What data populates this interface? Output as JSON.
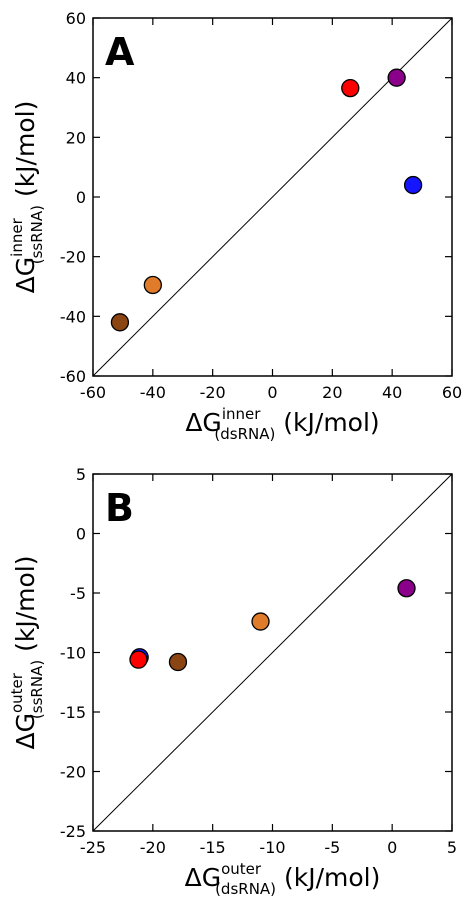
{
  "chart_data": [
    {
      "type": "scatter",
      "panel_label": "A",
      "xlabel": {
        "prefix": "ΔG",
        "sup": "inner",
        "sub": "(dsRNA)",
        "suffix": " (kJ/mol)"
      },
      "ylabel": {
        "prefix": "ΔG",
        "sup": "inner",
        "sub": "(ssRNA)",
        "suffix": " (kJ/mol)"
      },
      "xlim": [
        -60,
        60
      ],
      "ylim": [
        -60,
        60
      ],
      "xticks": [
        -60,
        -40,
        -20,
        0,
        20,
        40,
        60
      ],
      "yticks": [
        -60,
        -40,
        -20,
        0,
        20,
        40,
        60
      ],
      "xtick_labels": [
        "-60",
        "-40",
        "-20",
        "0",
        "20",
        "40",
        "60"
      ],
      "ytick_labels": [
        "-60",
        "-40",
        "-20",
        "0",
        "20",
        "40",
        "60"
      ],
      "reference_line": "y = x",
      "points": [
        {
          "x": -51,
          "y": -42,
          "color": "#8B4513"
        },
        {
          "x": -40,
          "y": -29.5,
          "color": "#E07B2A"
        },
        {
          "x": 26,
          "y": 36.5,
          "color": "#FF0000"
        },
        {
          "x": 41.5,
          "y": 40,
          "color": "#8B008B"
        },
        {
          "x": 47,
          "y": 4,
          "color": "#1515FF"
        }
      ]
    },
    {
      "type": "scatter",
      "panel_label": "B",
      "xlabel": {
        "prefix": "ΔG",
        "sup": "outer",
        "sub": "(dsRNA)",
        "suffix": " (kJ/mol)"
      },
      "ylabel": {
        "prefix": "ΔG",
        "sup": "outer",
        "sub": "(ssRNA)",
        "suffix": " (kJ/mol)"
      },
      "xlim": [
        -25,
        5
      ],
      "ylim": [
        -25,
        5
      ],
      "xticks": [
        -25,
        -20,
        -15,
        -10,
        -5,
        0,
        5
      ],
      "yticks": [
        -25,
        -20,
        -15,
        -10,
        -5,
        0,
        5
      ],
      "xtick_labels": [
        "-25",
        "-20",
        "-15",
        "-10",
        "-5",
        "0",
        "5"
      ],
      "ytick_labels": [
        "-25",
        "-20",
        "-15",
        "-10",
        "-5",
        "0",
        "5"
      ],
      "reference_line": "y = x",
      "points": [
        {
          "x": -21.1,
          "y": -10.4,
          "color": "#1515FF"
        },
        {
          "x": -21.2,
          "y": -10.6,
          "color": "#FF0000"
        },
        {
          "x": -17.9,
          "y": -10.8,
          "color": "#8B4513"
        },
        {
          "x": -11,
          "y": -7.4,
          "color": "#E07B2A"
        },
        {
          "x": 1.2,
          "y": -4.6,
          "color": "#8B008B"
        }
      ]
    }
  ]
}
